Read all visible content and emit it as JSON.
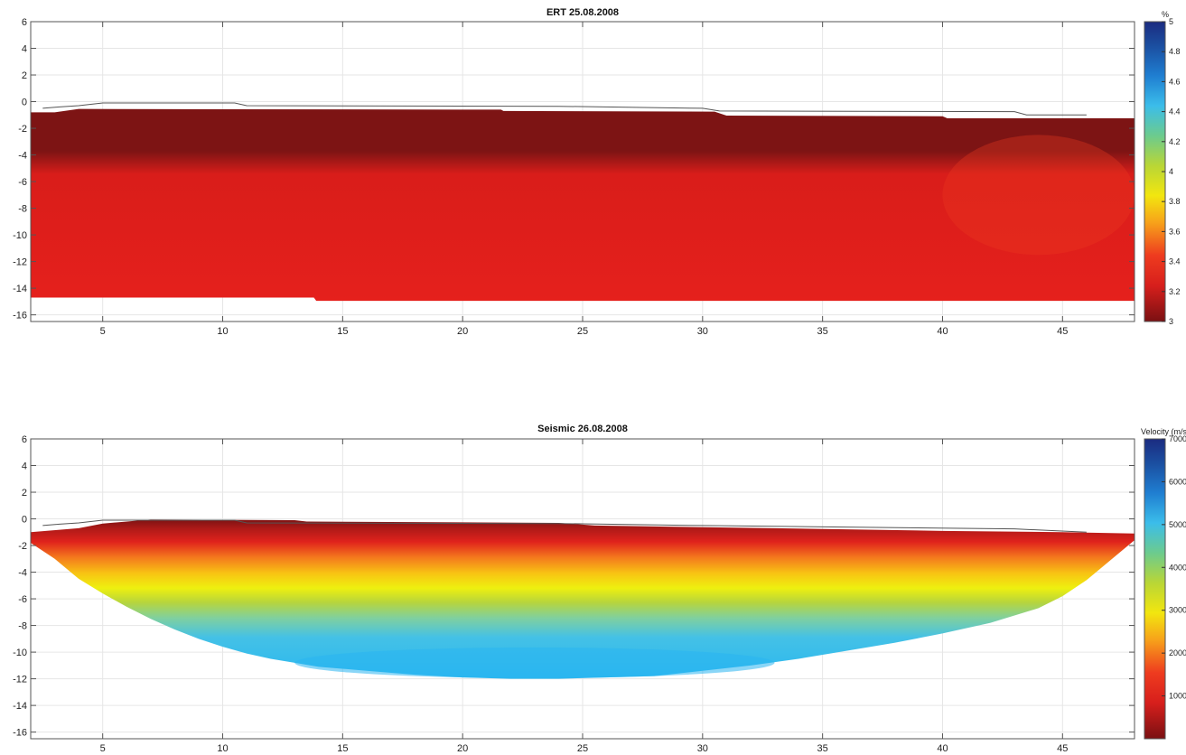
{
  "chart_data": [
    {
      "type": "heatmap",
      "title": "ERT 25.08.2008",
      "xlim": [
        2,
        48
      ],
      "ylim": [
        -16.5,
        6
      ],
      "xticks": [
        5,
        10,
        15,
        20,
        25,
        30,
        35,
        40,
        45
      ],
      "yticks": [
        6,
        4,
        2,
        0,
        -2,
        -4,
        -6,
        -8,
        -10,
        -12,
        -14,
        -16
      ],
      "grid": true,
      "colorbar": {
        "label": "%",
        "range": [
          3,
          5
        ],
        "ticks": [
          "3",
          "3.2",
          "3.4",
          "3.6",
          "3.8",
          "4",
          "4.2",
          "4.4",
          "4.6",
          "4.8",
          "5"
        ]
      },
      "surface_line": [
        [
          2.5,
          -0.5
        ],
        [
          3.2,
          -0.4
        ],
        [
          4,
          -0.3
        ],
        [
          5,
          -0.1
        ],
        [
          10.5,
          -0.1
        ],
        [
          11,
          -0.3
        ],
        [
          24,
          -0.35
        ],
        [
          30,
          -0.5
        ],
        [
          30.7,
          -0.7
        ],
        [
          43,
          -0.75
        ],
        [
          43.5,
          -1
        ],
        [
          46,
          -1
        ]
      ],
      "region": {
        "top": [
          [
            2,
            -0.8
          ],
          [
            3,
            -0.8
          ],
          [
            4,
            -0.55
          ],
          [
            20,
            -0.6
          ],
          [
            21.6,
            -0.6
          ],
          [
            21.7,
            -0.7
          ],
          [
            30.5,
            -0.75
          ],
          [
            31,
            -1.05
          ],
          [
            40,
            -1.1
          ],
          [
            40.2,
            -1.25
          ],
          [
            48,
            -1.25
          ]
        ],
        "bottom": [
          [
            2,
            -14.7
          ],
          [
            13.8,
            -14.7
          ],
          [
            13.9,
            -14.95
          ],
          [
            48,
            -14.95
          ]
        ]
      },
      "values_summary": "near-surface ~3.0 (dark red) over ~3.2 (red) at depth"
    },
    {
      "type": "heatmap",
      "title": "Seismic 26.08.2008",
      "xlim": [
        2,
        48
      ],
      "ylim": [
        -16.5,
        6
      ],
      "xticks": [
        5,
        10,
        15,
        20,
        25,
        30,
        35,
        40,
        45
      ],
      "yticks": [
        6,
        4,
        2,
        0,
        -2,
        -4,
        -6,
        -8,
        -10,
        -12,
        -14,
        -16
      ],
      "grid": true,
      "colorbar": {
        "label": "Velocity (m/s)",
        "range": [
          0,
          7000
        ],
        "ticks": [
          "1000",
          "2000",
          "3000",
          "4000",
          "5000",
          "6000",
          "7000"
        ]
      },
      "surface_line": [
        [
          2.5,
          -0.5
        ],
        [
          3.2,
          -0.4
        ],
        [
          4,
          -0.3
        ],
        [
          5,
          -0.1
        ],
        [
          10.5,
          -0.1
        ],
        [
          11,
          -0.3
        ],
        [
          24,
          -0.35
        ],
        [
          30,
          -0.5
        ],
        [
          43,
          -0.75
        ],
        [
          46,
          -1
        ]
      ],
      "velocity_profile": {
        "depth": [
          0,
          -1,
          -2,
          -4,
          -6,
          -7,
          -8,
          -9,
          -10,
          -11,
          -12
        ],
        "velocity": [
          300,
          800,
          1200,
          2000,
          3000,
          3400,
          3800,
          4200,
          4700,
          5000,
          5200
        ]
      },
      "region": {
        "top": [
          [
            2,
            -1.0
          ],
          [
            4,
            -0.7
          ],
          [
            5,
            -0.35
          ],
          [
            7,
            -0.05
          ],
          [
            13,
            -0.1
          ],
          [
            13.5,
            -0.2
          ],
          [
            24,
            -0.3
          ],
          [
            25.5,
            -0.5
          ],
          [
            33,
            -0.7
          ],
          [
            40,
            -0.9
          ],
          [
            45,
            -1.0
          ],
          [
            48,
            -1.1
          ]
        ],
        "bottom": [
          [
            2,
            -1.8
          ],
          [
            3,
            -3.0
          ],
          [
            4,
            -4.5
          ],
          [
            5,
            -5.6
          ],
          [
            6,
            -6.6
          ],
          [
            7,
            -7.5
          ],
          [
            8,
            -8.3
          ],
          [
            9,
            -9.0
          ],
          [
            10,
            -9.6
          ],
          [
            11,
            -10.1
          ],
          [
            12,
            -10.5
          ],
          [
            13,
            -10.8
          ],
          [
            14,
            -11.1
          ],
          [
            16,
            -11.4
          ],
          [
            18,
            -11.7
          ],
          [
            20,
            -11.9
          ],
          [
            22,
            -12.0
          ],
          [
            24,
            -12.0
          ],
          [
            26,
            -11.9
          ],
          [
            28,
            -11.8
          ],
          [
            30,
            -11.4
          ],
          [
            32,
            -11.0
          ],
          [
            34,
            -10.5
          ],
          [
            36,
            -9.9
          ],
          [
            38,
            -9.3
          ],
          [
            40,
            -8.6
          ],
          [
            42,
            -7.8
          ],
          [
            44,
            -6.7
          ],
          [
            45,
            -5.8
          ],
          [
            46,
            -4.6
          ],
          [
            47,
            -3.1
          ],
          [
            48,
            -1.6
          ]
        ]
      }
    }
  ]
}
